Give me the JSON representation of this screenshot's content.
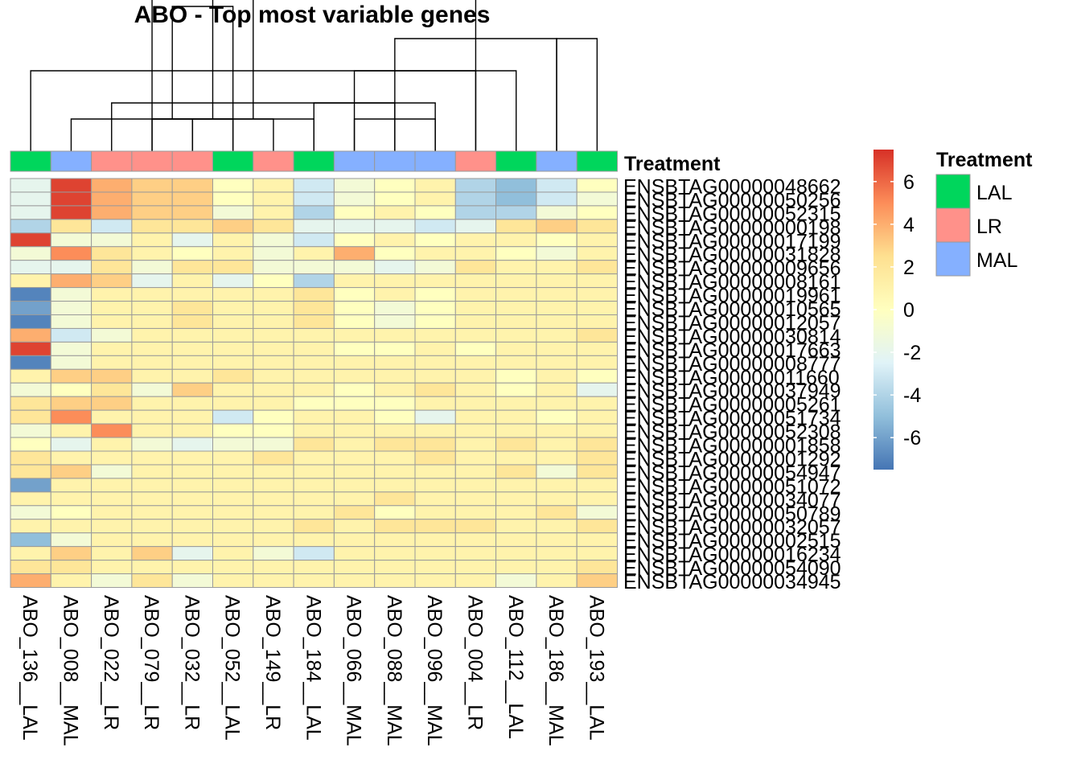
{
  "chart_data": {
    "type": "heatmap",
    "title": "ABO - Top most variable genes",
    "annotation_label": "Treatment",
    "columns": [
      "ABO_136__LAL",
      "ABO_008__MAL",
      "ABO_022__LR",
      "ABO_079__LR",
      "ABO_032__LR",
      "ABO_052__LAL",
      "ABO_149__LR",
      "ABO_184__LAL",
      "ABO_066__MAL",
      "ABO_088__MAL",
      "ABO_096__MAL",
      "ABO_004__LR",
      "ABO_112__LAL",
      "ABO_186__MAL",
      "ABO_193__LAL"
    ],
    "column_treatment": [
      "LAL",
      "MAL",
      "LR",
      "LR",
      "LR",
      "LAL",
      "LR",
      "LAL",
      "MAL",
      "MAL",
      "MAL",
      "LR",
      "LAL",
      "MAL",
      "LAL"
    ],
    "rows": [
      "ENSBTAG00000048662",
      "ENSBTAG00000050256",
      "ENSBTAG00000052315",
      "ENSBTAG00000000198",
      "ENSBTAG00000017199",
      "ENSBTAG00000031828",
      "ENSBTAG00000009656",
      "ENSBTAG00000008161",
      "ENSBTAG00000019961",
      "ENSBTAG00000010565",
      "ENSBTAG00000012057",
      "ENSBTAG00000030814",
      "ENSBTAG00000017663",
      "ENSBTAG00000008777",
      "ENSBTAG00000011660",
      "ENSBTAG00000037949",
      "ENSBTAG00000005261",
      "ENSBTAG00000051734",
      "ENSBTAG00000052308",
      "ENSBTAG00000001858",
      "ENSBTAG00000001292",
      "ENSBTAG00000054947",
      "ENSBTAG00000051072",
      "ENSBTAG00000034077",
      "ENSBTAG00000050789",
      "ENSBTAG00000032057",
      "ENSBTAG00000002515",
      "ENSBTAG00000016234",
      "ENSBTAG00000054090",
      "ENSBTAG00000034945"
    ],
    "values": [
      [
        -2,
        7,
        4,
        3,
        3,
        0,
        1,
        -3,
        -1,
        0,
        1,
        -4,
        -5,
        -3,
        0
      ],
      [
        -2,
        7,
        4,
        3,
        3,
        0,
        1,
        -3,
        -1,
        0,
        1,
        -4,
        -5,
        -3,
        -1
      ],
      [
        -2,
        7,
        4,
        3,
        3,
        -1,
        1,
        -4,
        0,
        1,
        0,
        -4,
        -4,
        -1,
        0
      ],
      [
        -4,
        2,
        -3,
        2,
        2,
        3,
        2,
        -2,
        -2,
        -2,
        -3,
        -2,
        2,
        3,
        2
      ],
      [
        7,
        -1,
        -1,
        1,
        -2,
        1,
        -1,
        -3,
        0,
        1,
        0,
        1,
        1,
        0,
        1
      ],
      [
        -1,
        5,
        2,
        1,
        0,
        1,
        -1,
        1,
        4,
        0,
        1,
        1,
        0,
        -1,
        1
      ],
      [
        -2,
        -2,
        2,
        -1,
        2,
        2,
        -1,
        -1,
        -1,
        -2,
        -1,
        2,
        1,
        1,
        2
      ],
      [
        1,
        4,
        3,
        -2,
        1,
        -2,
        0,
        -4,
        1,
        1,
        1,
        1,
        1,
        1,
        1
      ],
      [
        -7,
        -1,
        1,
        1,
        1,
        1,
        1,
        2,
        0,
        1,
        0,
        1,
        1,
        1,
        1
      ],
      [
        -6,
        -1,
        1,
        1,
        2,
        1,
        1,
        2,
        0,
        -1,
        0,
        1,
        1,
        1,
        1
      ],
      [
        -7,
        -1,
        1,
        1,
        2,
        1,
        1,
        2,
        0,
        -1,
        0,
        1,
        1,
        1,
        1
      ],
      [
        4,
        -3,
        -1,
        1,
        1,
        1,
        1,
        1,
        1,
        1,
        1,
        1,
        1,
        1,
        2
      ],
      [
        7,
        -1,
        1,
        1,
        1,
        1,
        1,
        1,
        0,
        0,
        1,
        0,
        1,
        1,
        1
      ],
      [
        -7,
        -1,
        1,
        1,
        1,
        1,
        1,
        1,
        1,
        1,
        1,
        1,
        1,
        1,
        1
      ],
      [
        1,
        3,
        3,
        1,
        1,
        2,
        1,
        1,
        1,
        1,
        1,
        1,
        0,
        1,
        0
      ],
      [
        -1,
        0,
        2,
        -1,
        3,
        1,
        1,
        1,
        0,
        1,
        2,
        1,
        0,
        1,
        -2
      ],
      [
        2,
        3,
        3,
        1,
        1,
        1,
        1,
        0,
        0,
        0,
        1,
        1,
        1,
        1,
        1
      ],
      [
        2,
        5,
        1,
        1,
        1,
        -3,
        0,
        1,
        1,
        0,
        -2,
        1,
        1,
        0,
        1
      ],
      [
        -1,
        1,
        5,
        1,
        1,
        0,
        0,
        1,
        1,
        1,
        1,
        1,
        1,
        1,
        1
      ],
      [
        0,
        -2,
        1,
        -1,
        -2,
        -1,
        -1,
        2,
        1,
        2,
        2,
        1,
        2,
        1,
        2
      ],
      [
        2,
        1,
        1,
        1,
        1,
        1,
        2,
        1,
        1,
        1,
        2,
        1,
        1,
        1,
        2
      ],
      [
        2,
        3,
        -1,
        1,
        1,
        1,
        1,
        1,
        1,
        1,
        1,
        1,
        2,
        -1,
        2
      ],
      [
        -6,
        1,
        1,
        1,
        1,
        1,
        1,
        1,
        1,
        1,
        1,
        1,
        1,
        1,
        1
      ],
      [
        1,
        1,
        1,
        1,
        1,
        1,
        1,
        1,
        1,
        2,
        1,
        1,
        1,
        1,
        1
      ],
      [
        -1,
        0,
        1,
        1,
        1,
        1,
        1,
        1,
        2,
        0,
        1,
        1,
        1,
        2,
        -1
      ],
      [
        1,
        1,
        1,
        1,
        1,
        1,
        1,
        2,
        1,
        2,
        2,
        2,
        1,
        1,
        2
      ],
      [
        -5,
        -1,
        1,
        1,
        1,
        1,
        1,
        1,
        1,
        1,
        1,
        1,
        1,
        1,
        1
      ],
      [
        1,
        3,
        1,
        3,
        -2,
        1,
        -1,
        -3,
        1,
        1,
        1,
        1,
        1,
        1,
        1
      ],
      [
        2,
        2,
        1,
        1,
        1,
        1,
        1,
        1,
        1,
        1,
        1,
        1,
        1,
        1,
        2
      ],
      [
        4,
        1,
        -1,
        2,
        -1,
        1,
        1,
        1,
        1,
        1,
        1,
        1,
        -1,
        1,
        3
      ]
    ],
    "color_scale": {
      "min": -7.5,
      "max": 7.5,
      "ticks": [
        6,
        4,
        2,
        0,
        -2,
        -4,
        -6
      ],
      "tick_labels": [
        "6",
        "4",
        "2",
        "0",
        "-2",
        "-4",
        "-6"
      ],
      "stops": [
        "#4575B4",
        "#91BFDB",
        "#E0F3F8",
        "#FFFFBF",
        "#FEE090",
        "#FC8D59",
        "#D73027"
      ]
    },
    "legend": {
      "title": "Treatment",
      "items": [
        {
          "label": "LAL",
          "color": "#00D65C"
        },
        {
          "label": "LR",
          "color": "#FF918A"
        },
        {
          "label": "MAL",
          "color": "#85B0FF"
        }
      ]
    },
    "dendrogram": [
      [
        2,
        3,
        4
      ],
      [
        2,
        1,
        5
      ],
      [
        2,
        3,
        6
      ],
      [
        2,
        4,
        7
      ],
      [
        2,
        10,
        8
      ],
      [
        3,
        2,
        9
      ],
      [
        3,
        7,
        10
      ],
      [
        5,
        0,
        11
      ],
      [
        5,
        8,
        12
      ],
      [
        7,
        9,
        13
      ],
      [
        7,
        13,
        14
      ],
      [
        9,
        5,
        15
      ],
      [
        10,
        11,
        16
      ],
      [
        13,
        17,
        18
      ]
    ]
  }
}
